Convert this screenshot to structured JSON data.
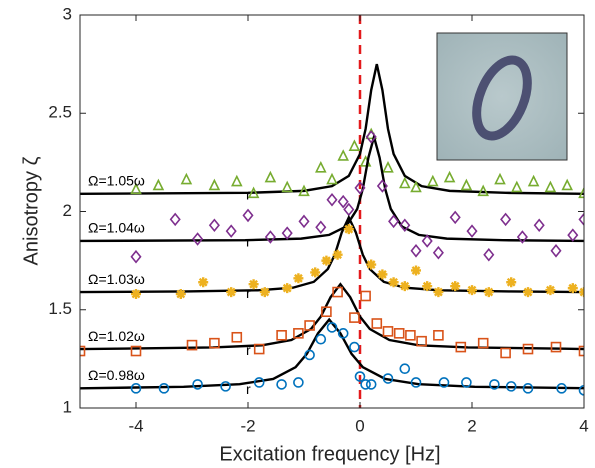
{
  "chart_data": {
    "type": "scatter",
    "xlabel": "Excitation frequency [Hz]",
    "ylabel": "Anisotropy ζ",
    "xlim": [
      -5,
      4
    ],
    "ylim": [
      1,
      3
    ],
    "xticks": [
      -4,
      -2,
      0,
      2,
      4
    ],
    "yticks": [
      1,
      1.5,
      2,
      2.5,
      3
    ],
    "vline": {
      "x": 0,
      "color": "#e31a1c"
    },
    "fit_color": "#000000",
    "series": [
      {
        "name": "Ω=1.05ω",
        "name_sub": "r",
        "color": "#77ac30",
        "marker": "triangle",
        "x": [
          -4.0,
          -3.6,
          -3.1,
          -2.6,
          -2.2,
          -1.9,
          -1.6,
          -1.3,
          -1.0,
          -0.7,
          -0.5,
          -0.3,
          -0.1,
          0.1,
          0.2,
          0.5,
          0.8,
          1.0,
          1.3,
          1.6,
          1.9,
          2.2,
          2.5,
          2.8,
          3.1,
          3.4,
          3.7,
          4.0
        ],
        "values": [
          2.11,
          2.13,
          2.16,
          2.13,
          2.15,
          2.09,
          2.17,
          2.12,
          2.1,
          2.22,
          2.16,
          2.28,
          2.33,
          2.25,
          2.39,
          2.22,
          2.14,
          2.12,
          2.15,
          2.17,
          2.13,
          2.1,
          2.16,
          2.12,
          2.15,
          2.12,
          2.13,
          2.09
        ],
        "fit_x": [
          -5,
          -2.0,
          -1.0,
          -0.5,
          -0.2,
          0,
          0.1,
          0.2,
          0.3,
          0.4,
          0.5,
          0.6,
          0.8,
          1.1,
          1.6,
          2.6,
          4
        ],
        "fit_values": [
          2.09,
          2.095,
          2.105,
          2.129,
          2.181,
          2.293,
          2.42,
          2.618,
          2.75,
          2.618,
          2.42,
          2.293,
          2.181,
          2.129,
          2.105,
          2.095,
          2.09
        ]
      },
      {
        "name": "Ω=1.04ω",
        "name_sub": "r",
        "color": "#7e2f8e",
        "marker": "diamond",
        "x": [
          -4.0,
          -3.3,
          -2.9,
          -2.6,
          -2.3,
          -2.0,
          -1.6,
          -1.3,
          -1.0,
          -0.7,
          -0.5,
          -0.3,
          -0.2,
          0.0,
          0.2,
          0.4,
          0.6,
          0.8,
          1.0,
          1.2,
          1.4,
          1.7,
          2.0,
          2.3,
          2.6,
          2.9,
          3.2,
          3.5,
          3.8,
          4.0
        ],
        "values": [
          1.77,
          1.96,
          1.86,
          1.93,
          1.9,
          1.98,
          1.87,
          1.89,
          1.95,
          1.92,
          2.06,
          2.05,
          2.01,
          2.12,
          2.38,
          2.13,
          1.95,
          1.93,
          1.8,
          1.85,
          1.79,
          1.97,
          1.9,
          1.78,
          1.96,
          1.87,
          1.93,
          1.8,
          1.88,
          1.96
        ],
        "fit_x": [
          -5,
          -2.05,
          -1.05,
          -0.55,
          -0.25,
          -0.05,
          0.05,
          0.15,
          0.25,
          0.35,
          0.45,
          0.55,
          0.75,
          1.05,
          1.55,
          2.55,
          4
        ],
        "fit_values": [
          1.85,
          1.854,
          1.862,
          1.881,
          1.923,
          2.013,
          2.115,
          2.274,
          2.38,
          2.274,
          2.115,
          2.013,
          1.923,
          1.881,
          1.862,
          1.854,
          1.85
        ]
      },
      {
        "name": "Ω=1.03ω",
        "name_sub": "r",
        "color": "#edb120",
        "marker": "star",
        "x": [
          -4.0,
          -3.2,
          -2.8,
          -2.3,
          -1.9,
          -1.7,
          -1.3,
          -1.1,
          -0.8,
          -0.6,
          -0.4,
          -0.2,
          0.2,
          0.4,
          0.6,
          0.8,
          1.0,
          1.2,
          1.4,
          1.7,
          2.0,
          2.3,
          2.7,
          3.0,
          3.4,
          3.8,
          4.0
        ],
        "values": [
          1.58,
          1.58,
          1.64,
          1.59,
          1.63,
          1.59,
          1.61,
          1.66,
          1.69,
          1.75,
          1.78,
          1.91,
          1.73,
          1.68,
          1.64,
          1.62,
          1.7,
          1.62,
          1.59,
          1.62,
          1.6,
          1.59,
          1.64,
          1.59,
          1.6,
          1.61,
          1.59
        ],
        "fit_x": [
          -5,
          -3.1,
          -1.825,
          -1.2,
          -0.825,
          -0.575,
          -0.45,
          -0.325,
          -0.2,
          -0.075,
          0.05,
          0.175,
          0.425,
          0.8,
          1.425,
          2.7,
          4
        ],
        "fit_values": [
          1.59,
          1.593,
          1.599,
          1.612,
          1.642,
          1.707,
          1.78,
          1.894,
          1.97,
          1.894,
          1.78,
          1.707,
          1.642,
          1.612,
          1.599,
          1.593,
          1.59
        ]
      },
      {
        "name": "Ω=1.02ω",
        "name_sub": "r",
        "color": "#d95319",
        "marker": "square",
        "x": [
          -5.0,
          -4.0,
          -3.0,
          -2.6,
          -2.2,
          -1.8,
          -1.4,
          -1.1,
          -0.9,
          -0.6,
          -0.4,
          -0.1,
          0.1,
          0.3,
          0.5,
          0.7,
          0.9,
          1.1,
          1.4,
          1.8,
          2.2,
          2.6,
          3.0,
          3.5,
          4.0
        ],
        "values": [
          1.29,
          1.29,
          1.32,
          1.33,
          1.36,
          1.3,
          1.37,
          1.38,
          1.42,
          1.49,
          1.59,
          1.46,
          1.57,
          1.43,
          1.39,
          1.38,
          1.37,
          1.34,
          1.37,
          1.31,
          1.33,
          1.28,
          1.3,
          1.31,
          1.29
        ],
        "fit_x": [
          -5,
          -4.35,
          -2.625,
          -1.75,
          -1.225,
          -0.875,
          -0.7,
          -0.525,
          -0.35,
          -0.175,
          0,
          0.175,
          0.525,
          1.05,
          1.925,
          3.65,
          4
        ],
        "fit_values": [
          1.3,
          1.302,
          1.308,
          1.319,
          1.346,
          1.402,
          1.465,
          1.564,
          1.63,
          1.564,
          1.465,
          1.402,
          1.346,
          1.319,
          1.308,
          1.302,
          1.3
        ]
      },
      {
        "name": "Ω=0.98ω",
        "name_sub": "r",
        "color": "#0072bd",
        "marker": "circle",
        "x": [
          -4.0,
          -3.5,
          -2.9,
          -2.4,
          -1.8,
          -1.4,
          -1.1,
          -0.9,
          -0.7,
          -0.5,
          -0.3,
          -0.1,
          0.0,
          0.1,
          0.2,
          0.5,
          0.8,
          1.0,
          1.5,
          1.9,
          2.4,
          2.7,
          3.0,
          3.6,
          4.0
        ],
        "values": [
          1.1,
          1.1,
          1.12,
          1.11,
          1.13,
          1.12,
          1.13,
          1.27,
          1.35,
          1.41,
          1.38,
          1.31,
          1.16,
          1.12,
          1.12,
          1.15,
          1.2,
          1.13,
          1.13,
          1.13,
          1.12,
          1.11,
          1.1,
          1.1,
          1.09
        ],
        "fit_x": [
          -5,
          -3.15,
          -2.15,
          -1.55,
          -1.15,
          -0.95,
          -0.75,
          -0.55,
          -0.35,
          -0.15,
          0.05,
          0.45,
          1.05,
          2.05,
          4
        ],
        "fit_values": [
          1.1,
          1.108,
          1.121,
          1.148,
          1.208,
          1.275,
          1.38,
          1.45,
          1.38,
          1.275,
          1.208,
          1.148,
          1.121,
          1.108,
          1.101
        ]
      }
    ]
  }
}
